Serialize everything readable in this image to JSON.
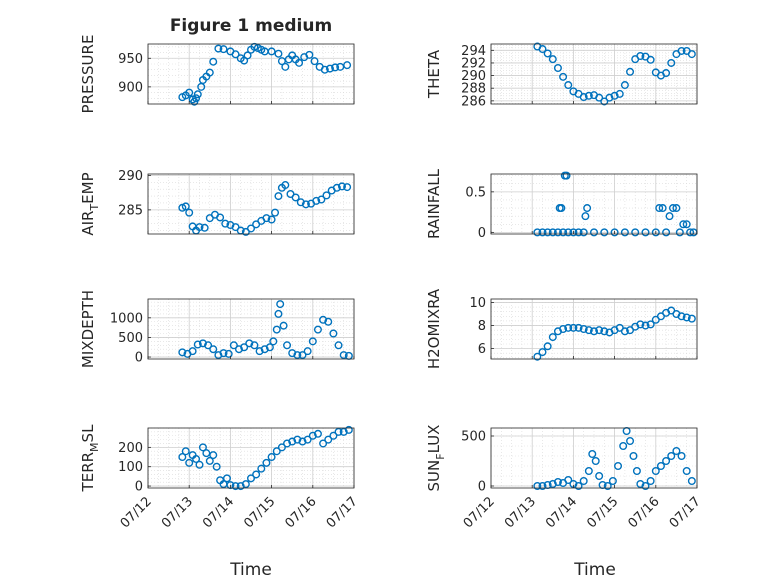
{
  "figure_title": "Figure 1 medium",
  "x_label": "Time",
  "x_ticks": [
    "07/12",
    "07/13",
    "07/14",
    "07/15",
    "07/16",
    "07/17"
  ],
  "marker_color": "#0072BD",
  "chart_data": [
    {
      "type": "scatter",
      "title": "Figure 1 medium",
      "ylabel": "PRESSURE",
      "xlabel": "",
      "ylim": [
        870,
        975
      ],
      "yticks": [
        900,
        950
      ],
      "ytick_labels": [
        "900",
        "950"
      ],
      "x": [
        "07/12 20:00",
        "07/12 22:00",
        "07/13 00:00",
        "07/13 02:00",
        "07/13 03:00",
        "07/13 04:00",
        "07/13 05:00",
        "07/13 07:00",
        "07/13 08:00",
        "07/13 10:00",
        "07/13 12:00",
        "07/13 14:00",
        "07/13 17:00",
        "07/13 20:00",
        "07/14 00:00",
        "07/14 03:00",
        "07/14 06:00",
        "07/14 08:00",
        "07/14 10:00",
        "07/14 12:00",
        "07/14 14:00",
        "07/14 16:00",
        "07/14 18:00",
        "07/14 20:00",
        "07/15 00:00",
        "07/15 04:00",
        "07/15 06:00",
        "07/15 08:00",
        "07/15 10:00",
        "07/15 12:00",
        "07/15 14:00",
        "07/15 16:00",
        "07/15 19:00",
        "07/15 22:00",
        "07/16 01:00",
        "07/16 04:00",
        "07/16 07:00",
        "07/16 10:00",
        "07/16 13:00",
        "07/16 16:00",
        "07/16 20:00"
      ],
      "y": [
        882,
        885,
        890,
        878,
        874,
        880,
        887,
        900,
        912,
        918,
        925,
        944,
        967,
        966,
        962,
        957,
        950,
        946,
        955,
        965,
        970,
        968,
        965,
        962,
        962,
        958,
        945,
        935,
        948,
        955,
        948,
        942,
        952,
        956,
        945,
        935,
        930,
        932,
        934,
        935,
        938
      ]
    },
    {
      "type": "scatter",
      "ylabel": "THETA",
      "xlabel": "",
      "ylim": [
        285.5,
        295
      ],
      "yticks": [
        286,
        288,
        290,
        292,
        294
      ],
      "ytick_labels": [
        "286",
        "288",
        "290",
        "292",
        "294"
      ],
      "x": [
        "07/13 03:00",
        "07/13 06:00",
        "07/13 09:00",
        "07/13 12:00",
        "07/13 15:00",
        "07/13 18:00",
        "07/13 21:00",
        "07/14 00:00",
        "07/14 03:00",
        "07/14 06:00",
        "07/14 09:00",
        "07/14 12:00",
        "07/14 15:00",
        "07/14 18:00",
        "07/14 21:00",
        "07/15 00:00",
        "07/15 03:00",
        "07/15 06:00",
        "07/15 09:00",
        "07/15 12:00",
        "07/15 15:00",
        "07/15 18:00",
        "07/15 21:00",
        "07/16 00:00",
        "07/16 03:00",
        "07/16 06:00",
        "07/16 09:00",
        "07/16 12:00",
        "07/16 15:00",
        "07/16 18:00",
        "07/16 21:00"
      ],
      "y": [
        294.6,
        294.2,
        293.5,
        292.6,
        291.2,
        289.8,
        288.5,
        287.5,
        287.1,
        286.6,
        286.8,
        286.9,
        286.5,
        285.9,
        286.5,
        286.8,
        287.1,
        288.5,
        290.6,
        292.6,
        293.1,
        293.0,
        292.5,
        290.5,
        290.0,
        290.4,
        292.0,
        293.4,
        293.9,
        293.9,
        293.4
      ]
    },
    {
      "type": "scatter",
      "ylabel": "AIR_TEMP",
      "xlabel": "",
      "ylim": [
        281.5,
        290.2
      ],
      "yticks": [
        285,
        290
      ],
      "ytick_labels": [
        "285",
        "290"
      ],
      "x": [
        "07/12 20:00",
        "07/12 22:00",
        "07/13 00:00",
        "07/13 02:00",
        "07/13 04:00",
        "07/13 06:00",
        "07/13 09:00",
        "07/13 12:00",
        "07/13 15:00",
        "07/13 18:00",
        "07/13 21:00",
        "07/14 00:00",
        "07/14 03:00",
        "07/14 06:00",
        "07/14 09:00",
        "07/14 12:00",
        "07/14 15:00",
        "07/14 18:00",
        "07/14 21:00",
        "07/15 00:00",
        "07/15 02:00",
        "07/15 04:00",
        "07/15 06:00",
        "07/15 08:00",
        "07/15 11:00",
        "07/15 14:00",
        "07/15 17:00",
        "07/15 20:00",
        "07/15 23:00",
        "07/16 02:00",
        "07/16 05:00",
        "07/16 08:00",
        "07/16 11:00",
        "07/16 14:00",
        "07/16 17:00",
        "07/16 20:00"
      ],
      "y": [
        285.3,
        285.5,
        284.6,
        282.6,
        282.0,
        282.5,
        282.4,
        283.8,
        284.3,
        283.9,
        283.0,
        282.8,
        282.5,
        282.0,
        281.8,
        282.3,
        282.9,
        283.4,
        283.8,
        283.6,
        284.6,
        287.0,
        288.2,
        288.6,
        287.3,
        286.8,
        286.1,
        285.8,
        285.9,
        286.3,
        286.5,
        287.1,
        287.8,
        288.2,
        288.4,
        288.3
      ]
    },
    {
      "type": "scatter",
      "ylabel": "RAINFALL",
      "xlabel": "",
      "ylim": [
        -0.02,
        0.72
      ],
      "yticks": [
        0,
        0.5
      ],
      "ytick_labels": [
        "0",
        "0.5"
      ],
      "x": [
        "07/13 03:00",
        "07/13 06:00",
        "07/13 09:00",
        "07/13 12:00",
        "07/13 15:00",
        "07/13 16:00",
        "07/13 17:00",
        "07/13 18:00",
        "07/13 19:00",
        "07/13 20:00",
        "07/13 21:00",
        "07/14 00:00",
        "07/14 03:00",
        "07/14 06:00",
        "07/14 07:00",
        "07/14 08:00",
        "07/14 12:00",
        "07/14 18:00",
        "07/15 00:00",
        "07/15 06:00",
        "07/15 12:00",
        "07/15 18:00",
        "07/16 00:00",
        "07/16 02:00",
        "07/16 04:00",
        "07/16 06:00",
        "07/16 08:00",
        "07/16 10:00",
        "07/16 12:00",
        "07/16 14:00",
        "07/16 16:00",
        "07/16 18:00",
        "07/16 20:00",
        "07/16 22:00"
      ],
      "y": [
        0,
        0,
        0,
        0,
        0,
        0.3,
        0.3,
        0,
        0.7,
        0.7,
        0,
        0,
        0,
        0,
        0.2,
        0.3,
        0,
        0,
        0,
        0,
        0,
        0,
        0,
        0.3,
        0.3,
        0,
        0.2,
        0.3,
        0.3,
        0,
        0.1,
        0.1,
        0,
        0
      ]
    },
    {
      "type": "scatter",
      "ylabel": "MIXDEPTH",
      "xlabel": "",
      "ylim": [
        -50,
        1480
      ],
      "yticks": [
        0,
        500,
        1000
      ],
      "ytick_labels": [
        "0",
        "500",
        "1000"
      ],
      "x": [
        "07/12 20:00",
        "07/12 23:00",
        "07/13 02:00",
        "07/13 05:00",
        "07/13 08:00",
        "07/13 11:00",
        "07/13 14:00",
        "07/13 17:00",
        "07/13 20:00",
        "07/13 23:00",
        "07/14 02:00",
        "07/14 05:00",
        "07/14 08:00",
        "07/14 11:00",
        "07/14 14:00",
        "07/14 17:00",
        "07/14 20:00",
        "07/14 23:00",
        "07/15 01:00",
        "07/15 03:00",
        "07/15 04:00",
        "07/15 05:00",
        "07/15 07:00",
        "07/15 09:00",
        "07/15 12:00",
        "07/15 15:00",
        "07/15 18:00",
        "07/15 21:00",
        "07/16 00:00",
        "07/16 03:00",
        "07/16 06:00",
        "07/16 09:00",
        "07/16 12:00",
        "07/16 15:00",
        "07/16 18:00",
        "07/16 21:00"
      ],
      "y": [
        120,
        80,
        150,
        320,
        350,
        300,
        200,
        50,
        100,
        80,
        300,
        200,
        250,
        350,
        300,
        150,
        200,
        250,
        400,
        700,
        1100,
        1350,
        800,
        300,
        100,
        50,
        50,
        150,
        400,
        700,
        950,
        900,
        600,
        300,
        50,
        30
      ]
    },
    {
      "type": "scatter",
      "ylabel": "H2OMIXRA",
      "xlabel": "",
      "ylim": [
        5.1,
        10.3
      ],
      "yticks": [
        6,
        8,
        10
      ],
      "ytick_labels": [
        "6",
        "8",
        "10"
      ],
      "x": [
        "07/13 03:00",
        "07/13 06:00",
        "07/13 09:00",
        "07/13 12:00",
        "07/13 15:00",
        "07/13 18:00",
        "07/13 21:00",
        "07/14 00:00",
        "07/14 03:00",
        "07/14 06:00",
        "07/14 09:00",
        "07/14 12:00",
        "07/14 15:00",
        "07/14 18:00",
        "07/14 21:00",
        "07/15 00:00",
        "07/15 03:00",
        "07/15 06:00",
        "07/15 09:00",
        "07/15 12:00",
        "07/15 15:00",
        "07/15 18:00",
        "07/15 21:00",
        "07/16 00:00",
        "07/16 03:00",
        "07/16 06:00",
        "07/16 09:00",
        "07/16 12:00",
        "07/16 15:00",
        "07/16 18:00",
        "07/16 21:00"
      ],
      "y": [
        5.3,
        5.7,
        6.2,
        7.0,
        7.5,
        7.7,
        7.8,
        7.8,
        7.8,
        7.7,
        7.6,
        7.5,
        7.6,
        7.5,
        7.4,
        7.6,
        7.8,
        7.5,
        7.6,
        7.9,
        8.1,
        8.0,
        8.1,
        8.5,
        8.8,
        9.1,
        9.3,
        9.0,
        8.8,
        8.7,
        8.6
      ]
    },
    {
      "type": "scatter",
      "ylabel": "TERR_MSL",
      "xlabel": "Time",
      "ylim": [
        -10,
        300
      ],
      "yticks": [
        0,
        100,
        200
      ],
      "ytick_labels": [
        "0",
        "100",
        "200"
      ],
      "x": [
        "07/12 20:00",
        "07/12 22:00",
        "07/13 00:00",
        "07/13 02:00",
        "07/13 04:00",
        "07/13 06:00",
        "07/13 08:00",
        "07/13 10:00",
        "07/13 12:00",
        "07/13 14:00",
        "07/13 16:00",
        "07/13 18:00",
        "07/13 20:00",
        "07/13 22:00",
        "07/14 00:00",
        "07/14 03:00",
        "07/14 06:00",
        "07/14 09:00",
        "07/14 12:00",
        "07/14 15:00",
        "07/14 18:00",
        "07/14 21:00",
        "07/15 00:00",
        "07/15 03:00",
        "07/15 06:00",
        "07/15 09:00",
        "07/15 12:00",
        "07/15 15:00",
        "07/15 18:00",
        "07/15 21:00",
        "07/16 00:00",
        "07/16 03:00",
        "07/16 06:00",
        "07/16 09:00",
        "07/16 12:00",
        "07/16 15:00",
        "07/16 18:00",
        "07/16 21:00"
      ],
      "y": [
        150,
        180,
        120,
        160,
        140,
        110,
        200,
        170,
        130,
        160,
        100,
        30,
        10,
        40,
        5,
        0,
        0,
        10,
        40,
        60,
        90,
        120,
        150,
        180,
        200,
        220,
        230,
        240,
        230,
        240,
        260,
        270,
        220,
        240,
        260,
        280,
        280,
        290
      ]
    },
    {
      "type": "scatter",
      "ylabel": "SUN_FLUX",
      "xlabel": "Time",
      "ylim": [
        -20,
        580
      ],
      "yticks": [
        0,
        500
      ],
      "ytick_labels": [
        "0",
        "500"
      ],
      "x": [
        "07/13 03:00",
        "07/13 06:00",
        "07/13 09:00",
        "07/13 12:00",
        "07/13 15:00",
        "07/13 18:00",
        "07/13 21:00",
        "07/14 00:00",
        "07/14 03:00",
        "07/14 06:00",
        "07/14 09:00",
        "07/14 11:00",
        "07/14 13:00",
        "07/14 15:00",
        "07/14 17:00",
        "07/14 20:00",
        "07/14 23:00",
        "07/15 02:00",
        "07/15 05:00",
        "07/15 07:00",
        "07/15 09:00",
        "07/15 11:00",
        "07/15 13:00",
        "07/15 15:00",
        "07/15 18:00",
        "07/15 21:00",
        "07/16 00:00",
        "07/16 03:00",
        "07/16 06:00",
        "07/16 09:00",
        "07/16 12:00",
        "07/16 15:00",
        "07/16 18:00",
        "07/16 21:00"
      ],
      "y": [
        0,
        0,
        10,
        20,
        40,
        30,
        60,
        20,
        0,
        50,
        150,
        320,
        250,
        100,
        10,
        0,
        50,
        200,
        400,
        550,
        450,
        300,
        150,
        20,
        0,
        50,
        150,
        200,
        250,
        300,
        350,
        300,
        150,
        50
      ]
    }
  ]
}
